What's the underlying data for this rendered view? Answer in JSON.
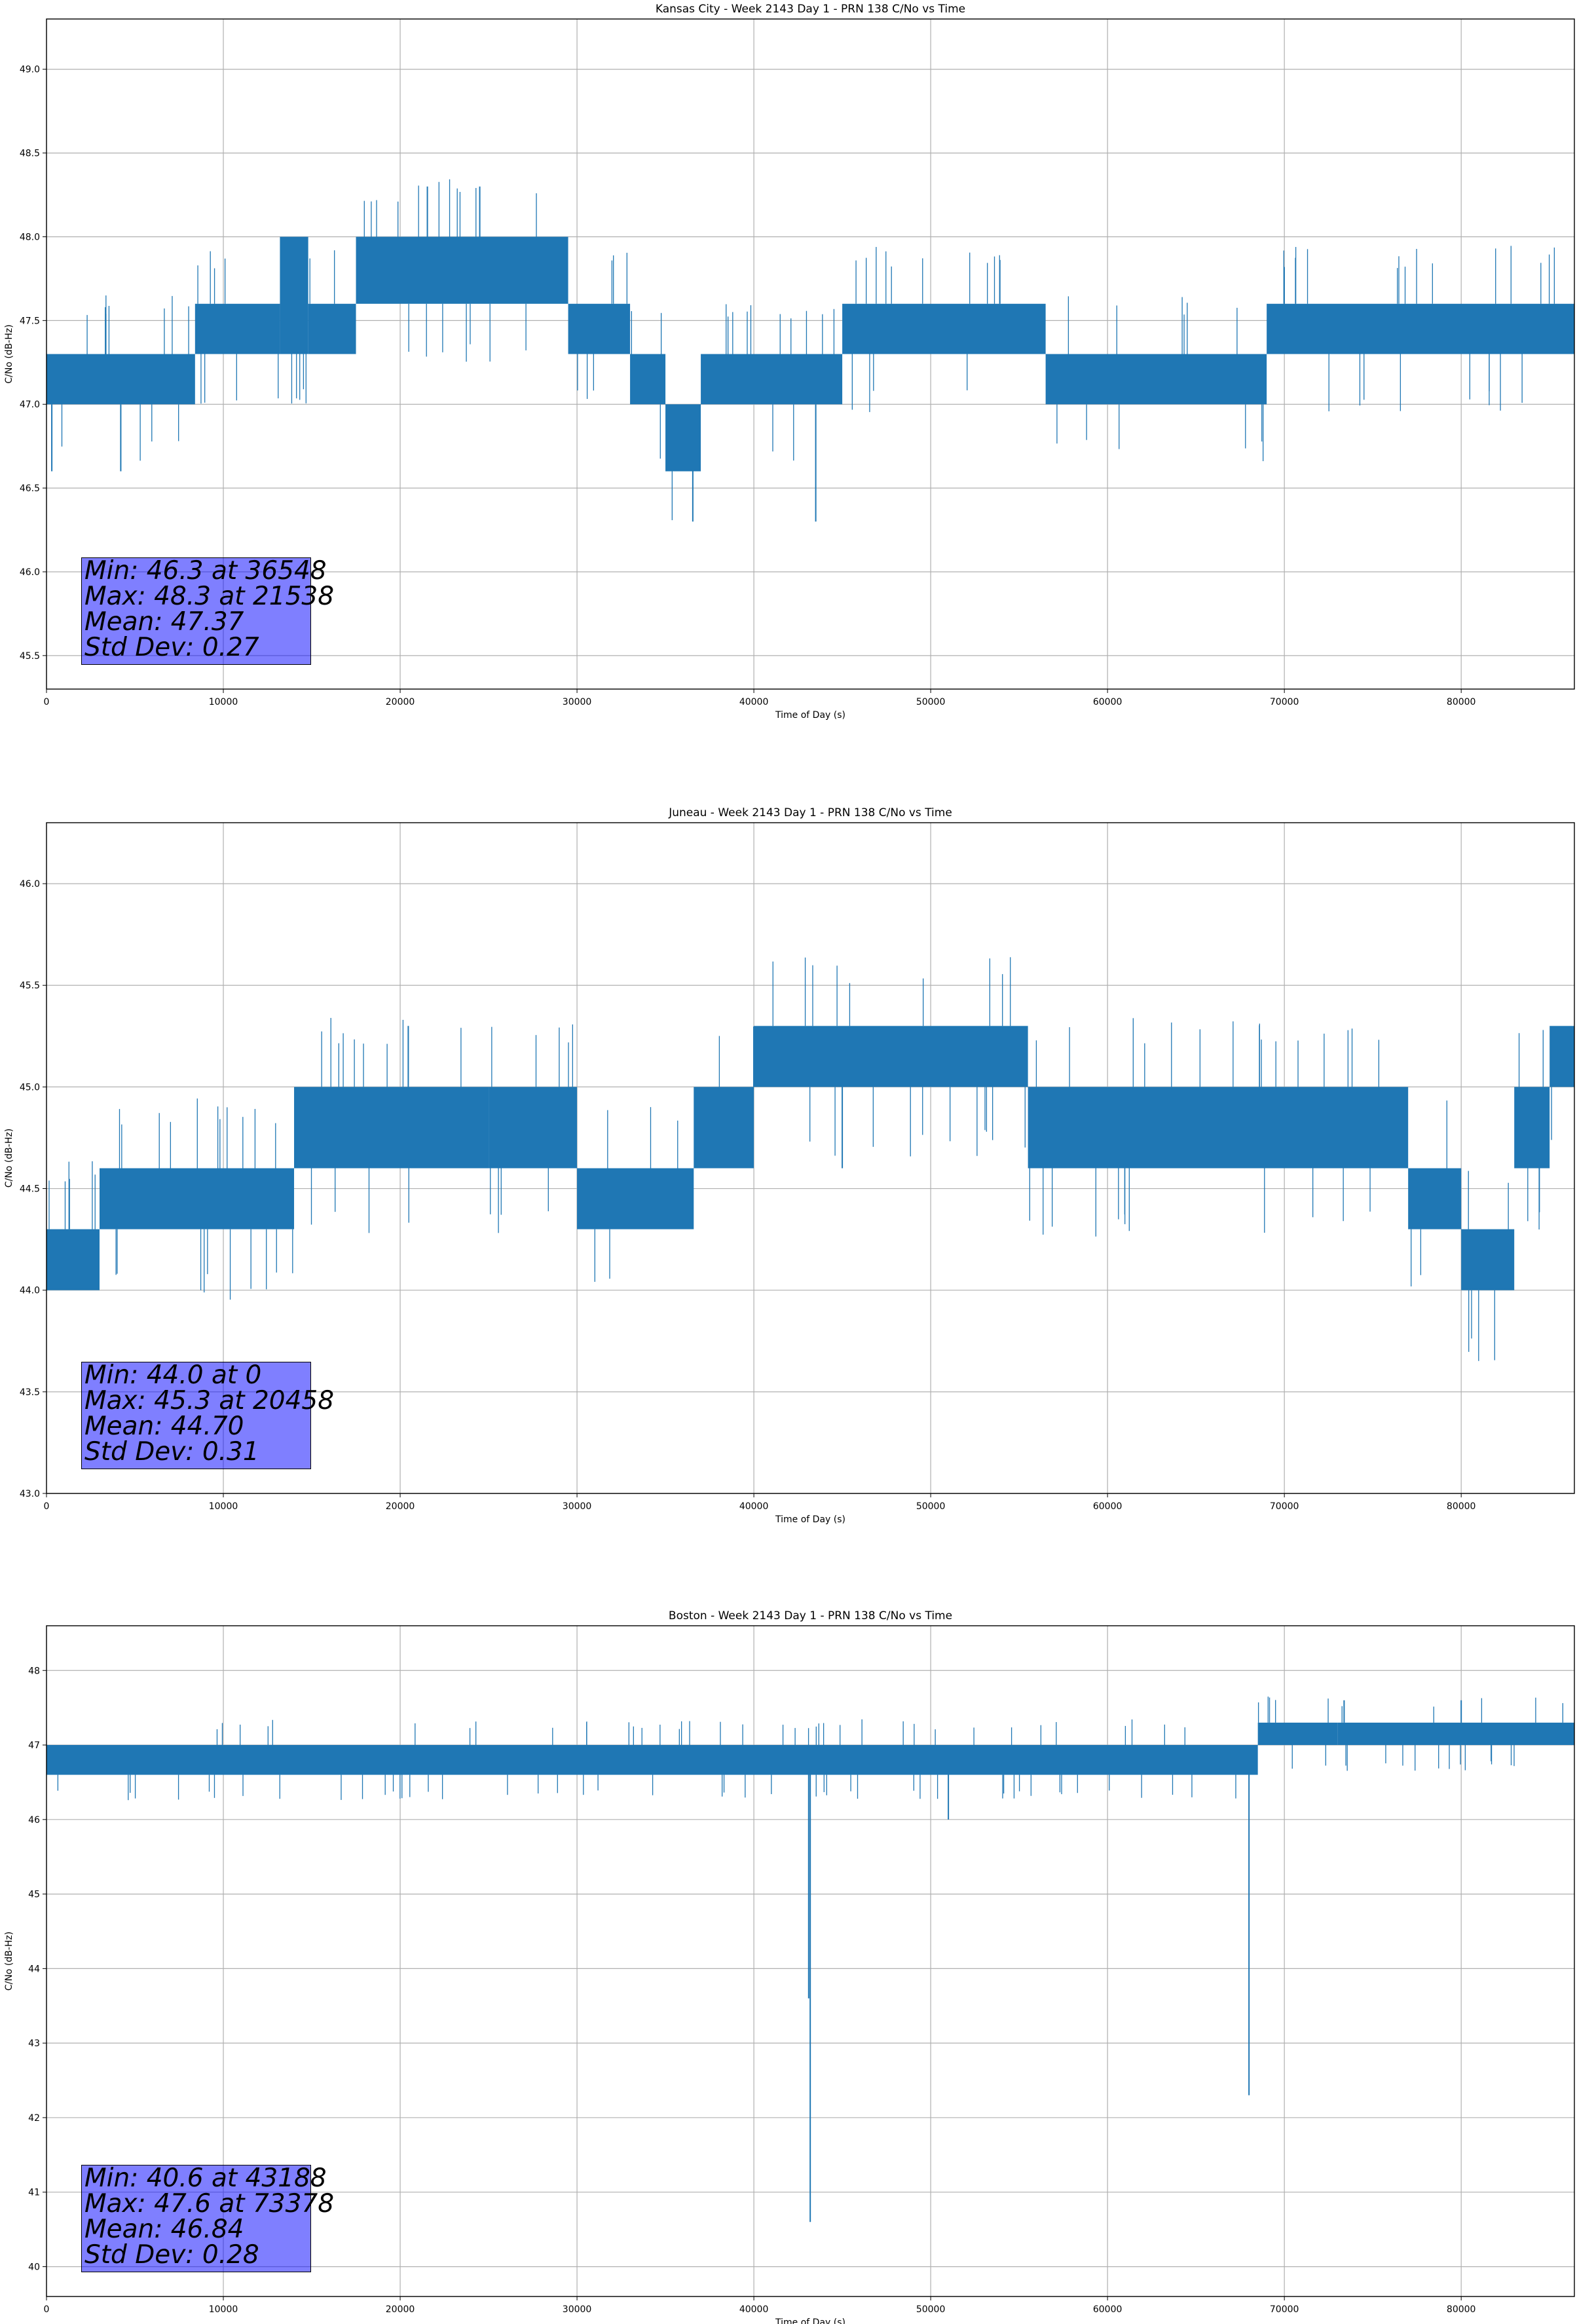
{
  "chart_data": [
    {
      "type": "line",
      "title": "Kansas City - Week 2143 Day 1 - PRN 138 C/No vs Time",
      "xlabel": "Time of Day (s)",
      "ylabel": "C/No (dB-Hz)",
      "xlim": [
        0,
        86400
      ],
      "ylim": [
        45.3,
        49.3
      ],
      "xticks": [
        0,
        10000,
        20000,
        30000,
        40000,
        50000,
        60000,
        70000,
        80000
      ],
      "yticks": [
        "45.5",
        "46.0",
        "46.5",
        "47.0",
        "47.5",
        "48.0",
        "48.5",
        "49.0"
      ],
      "grid": true,
      "color": "#1f77b4",
      "segments": [
        {
          "x0": 0,
          "x1": 8400,
          "lo": 47.0,
          "hi": 47.3
        },
        {
          "x0": 8400,
          "x1": 13200,
          "lo": 47.3,
          "hi": 47.6
        },
        {
          "x0": 13200,
          "x1": 14800,
          "lo": 47.3,
          "hi": 48.0
        },
        {
          "x0": 14800,
          "x1": 17500,
          "lo": 47.3,
          "hi": 47.6
        },
        {
          "x0": 17500,
          "x1": 29500,
          "lo": 47.6,
          "hi": 48.0
        },
        {
          "x0": 29500,
          "x1": 33000,
          "lo": 47.3,
          "hi": 47.6
        },
        {
          "x0": 33000,
          "x1": 35000,
          "lo": 47.0,
          "hi": 47.3
        },
        {
          "x0": 35000,
          "x1": 37000,
          "lo": 46.6,
          "hi": 47.0
        },
        {
          "x0": 37000,
          "x1": 45000,
          "lo": 47.0,
          "hi": 47.3
        },
        {
          "x0": 45000,
          "x1": 56500,
          "lo": 47.3,
          "hi": 47.6
        },
        {
          "x0": 56500,
          "x1": 69000,
          "lo": 47.0,
          "hi": 47.3
        },
        {
          "x0": 69000,
          "x1": 86400,
          "lo": 47.3,
          "hi": 47.6
        }
      ],
      "spikes": [
        [
          36548,
          46.3
        ],
        [
          21538,
          48.3
        ],
        [
          24500,
          48.3
        ],
        [
          43500,
          46.3
        ],
        [
          4200,
          46.6
        ],
        [
          300,
          46.6
        ]
      ],
      "stats": {
        "min": "Min: 46.3 at 36548",
        "max": "Max: 48.3 at 21538",
        "mean": "Mean: 47.37",
        "std": "Std Dev: 0.27"
      }
    },
    {
      "type": "line",
      "title": "Juneau - Week 2143 Day 1 - PRN 138 C/No vs Time",
      "xlabel": "Time of Day (s)",
      "ylabel": "C/No (dB-Hz)",
      "xlim": [
        0,
        86400
      ],
      "ylim": [
        43.0,
        46.3
      ],
      "xticks": [
        0,
        10000,
        20000,
        30000,
        40000,
        50000,
        60000,
        70000,
        80000
      ],
      "yticks": [
        "43.0",
        "43.5",
        "44.0",
        "44.5",
        "45.0",
        "45.5",
        "46.0"
      ],
      "grid": true,
      "color": "#1f77b4",
      "segments": [
        {
          "x0": 0,
          "x1": 3000,
          "lo": 44.0,
          "hi": 44.3
        },
        {
          "x0": 3000,
          "x1": 14000,
          "lo": 44.3,
          "hi": 44.6
        },
        {
          "x0": 14000,
          "x1": 25000,
          "lo": 44.6,
          "hi": 45.0
        },
        {
          "x0": 25000,
          "x1": 30000,
          "lo": 44.6,
          "hi": 45.0
        },
        {
          "x0": 30000,
          "x1": 36600,
          "lo": 44.3,
          "hi": 44.6
        },
        {
          "x0": 36600,
          "x1": 40000,
          "lo": 44.6,
          "hi": 45.0
        },
        {
          "x0": 40000,
          "x1": 55500,
          "lo": 45.0,
          "hi": 45.3
        },
        {
          "x0": 55500,
          "x1": 77000,
          "lo": 44.6,
          "hi": 45.0
        },
        {
          "x0": 77000,
          "x1": 80000,
          "lo": 44.3,
          "hi": 44.6
        },
        {
          "x0": 80000,
          "x1": 83000,
          "lo": 44.0,
          "hi": 44.3
        },
        {
          "x0": 83000,
          "x1": 85000,
          "lo": 44.6,
          "hi": 45.0
        },
        {
          "x0": 85000,
          "x1": 86400,
          "lo": 45.0,
          "hi": 45.3
        }
      ],
      "spikes": [
        [
          20458,
          45.3
        ],
        [
          0,
          44.0
        ],
        [
          45000,
          44.6
        ]
      ],
      "stats": {
        "min": "Min: 44.0 at 0",
        "max": "Max: 45.3 at 20458",
        "mean": "Mean: 44.70",
        "std": "Std Dev: 0.31"
      }
    },
    {
      "type": "line",
      "title": "Boston - Week 2143 Day 1 - PRN 138 C/No vs Time",
      "xlabel": "Time of Day (s)",
      "ylabel": "C/No (dB-Hz)",
      "xlim": [
        0,
        86400
      ],
      "ylim": [
        39.6,
        48.6
      ],
      "xticks": [
        0,
        10000,
        20000,
        30000,
        40000,
        50000,
        60000,
        70000,
        80000
      ],
      "yticks": [
        "40",
        "41",
        "42",
        "43",
        "44",
        "45",
        "46",
        "47",
        "48"
      ],
      "grid": true,
      "color": "#1f77b4",
      "segments": [
        {
          "x0": 0,
          "x1": 68500,
          "lo": 46.6,
          "hi": 47.0
        },
        {
          "x0": 68500,
          "x1": 73000,
          "lo": 47.0,
          "hi": 47.3
        },
        {
          "x0": 73000,
          "x1": 86400,
          "lo": 47.0,
          "hi": 47.3
        }
      ],
      "spikes": [
        [
          43188,
          40.6
        ],
        [
          43100,
          43.6
        ],
        [
          68000,
          42.3
        ],
        [
          73378,
          47.6
        ],
        [
          80000,
          47.6
        ],
        [
          51000,
          46.0
        ]
      ],
      "stats": {
        "min": "Min: 40.6 at 43188",
        "max": "Max: 47.6 at 73378",
        "mean": "Mean: 46.84",
        "std": "Std Dev: 0.28"
      }
    }
  ]
}
